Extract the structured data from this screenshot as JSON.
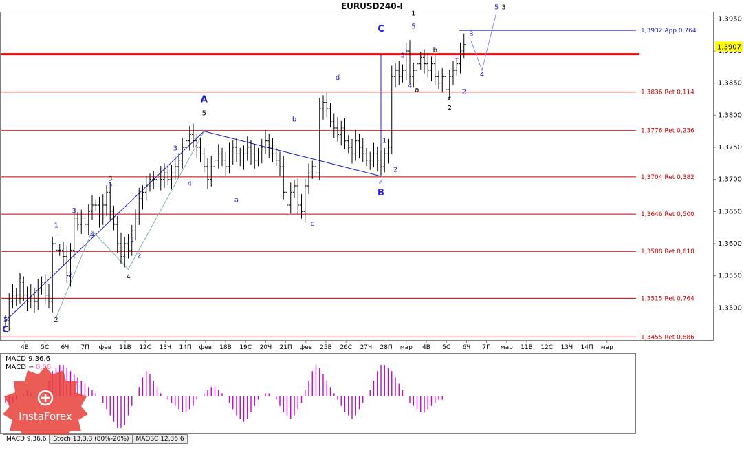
{
  "chart_data": {
    "type": "candlestick",
    "title": "EURUSD240-I",
    "current_price": "1,3907",
    "y_ticks": [
      "1,3950",
      "1,3900",
      "1,3850",
      "1,3800",
      "1,3750",
      "1,3700",
      "1,3650",
      "1,3600",
      "1,3550",
      "1,3500"
    ],
    "ylim": [
      1.345,
      1.396
    ],
    "x_ticks": [
      "4В",
      "5С",
      "6Ч",
      "7П",
      "фев",
      "11В",
      "12С",
      "13Ч",
      "14П",
      "фев",
      "18В",
      "19С",
      "20Ч",
      "21П",
      "фев",
      "25В",
      "26С",
      "27Ч",
      "28П",
      "мар",
      "4В",
      "5С",
      "6Ч",
      "7П",
      "мар",
      "11В",
      "12С",
      "13Ч",
      "14П",
      "мар"
    ],
    "price_series": [
      1.348,
      1.351,
      1.352,
      1.352,
      1.354,
      1.352,
      1.351,
      1.352,
      1.351,
      1.353,
      1.354,
      1.352,
      1.351,
      1.36,
      1.359,
      1.359,
      1.358,
      1.355,
      1.359,
      1.364,
      1.363,
      1.364,
      1.363,
      1.365,
      1.366,
      1.366,
      1.364,
      1.366,
      1.368,
      1.365,
      1.363,
      1.36,
      1.358,
      1.36,
      1.359,
      1.362,
      1.364,
      1.367,
      1.368,
      1.369,
      1.37,
      1.37,
      1.371,
      1.37,
      1.371,
      1.37,
      1.371,
      1.372,
      1.373,
      1.375,
      1.376,
      1.377,
      1.376,
      1.375,
      1.374,
      1.372,
      1.37,
      1.372,
      1.373,
      1.374,
      1.373,
      1.372,
      1.374,
      1.375,
      1.374,
      1.373,
      1.374,
      1.375,
      1.374,
      1.373,
      1.374,
      1.375,
      1.376,
      1.375,
      1.374,
      1.373,
      1.372,
      1.368,
      1.366,
      1.368,
      1.369,
      1.366,
      1.365,
      1.369,
      1.371,
      1.372,
      1.371,
      1.381,
      1.382,
      1.381,
      1.379,
      1.378,
      1.377,
      1.378,
      1.376,
      1.375,
      1.374,
      1.376,
      1.375,
      1.374,
      1.373,
      1.373,
      1.374,
      1.373,
      1.372,
      1.374,
      1.375,
      1.386,
      1.387,
      1.386,
      1.387,
      1.39,
      1.386,
      1.387,
      1.388,
      1.389,
      1.388,
      1.387,
      1.388,
      1.386,
      1.385,
      1.386,
      1.384,
      1.386,
      1.387,
      1.388,
      1.39,
      1.391
    ],
    "levels": [
      {
        "value": 1.3932,
        "label": "1,3932 App 0,764"
      },
      {
        "value": 1.3836,
        "label": "1,3836 Ret 0,114"
      },
      {
        "value": 1.3776,
        "label": "1,3776 Ret 0,236"
      },
      {
        "value": 1.3704,
        "label": "1,3704 Ret 0,382"
      },
      {
        "value": 1.3646,
        "label": "1,3646 Ret 0,500"
      },
      {
        "value": 1.3588,
        "label": "1,3588 Ret 0,618"
      },
      {
        "value": 1.3515,
        "label": "1,3515 Ret 0,764"
      },
      {
        "value": 1.3455,
        "label": "1,3455 Ret 0,886"
      }
    ],
    "resistance_level": 1.3895,
    "wave_labels": [
      {
        "text": "5",
        "x": 0,
        "y": 1.3478,
        "color": "#2222cc"
      },
      {
        "text": "C",
        "x": 0,
        "y": 1.3462,
        "color": "#2222cc"
      },
      {
        "text": "?",
        "x": 1,
        "y": 1.3462,
        "color": "#000000"
      },
      {
        "text": "1",
        "x": 4,
        "y": 1.3545,
        "color": "#000000"
      },
      {
        "text": "2",
        "x": 14,
        "y": 1.3478,
        "color": "#000000"
      },
      {
        "text": "1",
        "x": 14,
        "y": 1.3625,
        "color": "#2222cc"
      },
      {
        "text": "2",
        "x": 18,
        "y": 1.3548,
        "color": "#2222cc"
      },
      {
        "text": "3",
        "x": 19,
        "y": 1.3648,
        "color": "#2222cc"
      },
      {
        "text": "4",
        "x": 24,
        "y": 1.361,
        "color": "#2222cc"
      },
      {
        "text": "3",
        "x": 29,
        "y": 1.3698,
        "color": "#000000"
      },
      {
        "text": "5",
        "x": 29,
        "y": 1.3688,
        "color": "#2222cc"
      },
      {
        "text": "4",
        "x": 34,
        "y": 1.3545,
        "color": "#000000"
      },
      {
        "text": "1",
        "x": 35,
        "y": 1.3603,
        "color": "#2222cc"
      },
      {
        "text": "2",
        "x": 37,
        "y": 1.3578,
        "color": "#2222cc"
      },
      {
        "text": "3",
        "x": 47,
        "y": 1.3745,
        "color": "#2222cc"
      },
      {
        "text": "4",
        "x": 51,
        "y": 1.369,
        "color": "#2222cc"
      },
      {
        "text": "A",
        "x": 55,
        "y": 1.382,
        "color": "#2222cc"
      },
      {
        "text": "5",
        "x": 55,
        "y": 1.38,
        "color": "#000000"
      },
      {
        "text": "a",
        "x": 64,
        "y": 1.3665,
        "color": "#2222cc"
      },
      {
        "text": "b",
        "x": 80,
        "y": 1.379,
        "color": "#2222cc"
      },
      {
        "text": "c",
        "x": 85,
        "y": 1.3628,
        "color": "#2222cc"
      },
      {
        "text": "d",
        "x": 92,
        "y": 1.3855,
        "color": "#2222cc"
      },
      {
        "text": "e",
        "x": 104,
        "y": 1.3692,
        "color": "#2222cc"
      },
      {
        "text": "B",
        "x": 104,
        "y": 1.3675,
        "color": "#2222cc"
      },
      {
        "text": "C",
        "x": 104,
        "y": 1.393,
        "color": "#2222cc"
      },
      {
        "text": "1",
        "x": 105,
        "y": 1.3757,
        "color": "#2222cc"
      },
      {
        "text": "2",
        "x": 108,
        "y": 1.3712,
        "color": "#2222cc"
      },
      {
        "text": "3",
        "x": 110,
        "y": 1.389,
        "color": "#2222cc"
      },
      {
        "text": "4",
        "x": 112,
        "y": 1.3842,
        "color": "#2222cc"
      },
      {
        "text": "5",
        "x": 113,
        "y": 1.3935,
        "color": "#2222cc"
      },
      {
        "text": "1",
        "x": 113,
        "y": 1.3955,
        "color": "#000000"
      },
      {
        "text": "a",
        "x": 114,
        "y": 1.3836,
        "color": "#000000"
      },
      {
        "text": "b",
        "x": 119,
        "y": 1.3898,
        "color": "#000000"
      },
      {
        "text": "c",
        "x": 123,
        "y": 1.3823,
        "color": "#000000"
      },
      {
        "text": "2",
        "x": 123,
        "y": 1.3808,
        "color": "#000000"
      },
      {
        "text": "1",
        "x": 125,
        "y": 1.3888,
        "color": "#cc22cc"
      },
      {
        "text": "2",
        "x": 127,
        "y": 1.3833,
        "color": "#2222cc"
      },
      {
        "text": "3",
        "x": 129,
        "y": 1.3923,
        "color": "#2222cc"
      },
      {
        "text": "4",
        "x": 132,
        "y": 1.386,
        "color": "#2222cc"
      },
      {
        "text": "5",
        "x": 136,
        "y": 1.3965,
        "color": "#2222cc"
      },
      {
        "text": "3",
        "x": 138,
        "y": 1.3965,
        "color": "#000000"
      }
    ],
    "macd_label": "MACD 9,36,6",
    "macd_value_label": "MACD = ",
    "macd_value": "0,00",
    "macd_hist": [
      -0.2,
      -0.3,
      -0.2,
      -0.1,
      0.0,
      0.1,
      0.2,
      0.1,
      0.0,
      -0.1,
      0.0,
      0.2,
      0.5,
      0.8,
      0.9,
      1.0,
      1.0,
      0.9,
      0.8,
      0.7,
      0.6,
      0.5,
      0.4,
      0.3,
      0.2,
      0.1,
      0.0,
      -0.2,
      -0.4,
      -0.6,
      -0.8,
      -1.0,
      -1.0,
      -0.9,
      -0.6,
      -0.3,
      0.0,
      0.3,
      0.6,
      0.8,
      0.7,
      0.5,
      0.3,
      0.1,
      0.0,
      -0.1,
      -0.2,
      -0.3,
      -0.4,
      -0.5,
      -0.5,
      -0.4,
      -0.3,
      -0.1,
      0.0,
      0.1,
      0.2,
      0.3,
      0.3,
      0.2,
      0.1,
      0.0,
      -0.2,
      -0.4,
      -0.6,
      -0.7,
      -0.8,
      -0.7,
      -0.5,
      -0.3,
      -0.1,
      0.0,
      0.1,
      0.1,
      0.0,
      -0.1,
      -0.3,
      -0.5,
      -0.6,
      -0.7,
      -0.6,
      -0.4,
      -0.2,
      0.2,
      0.5,
      0.8,
      1.0,
      0.9,
      0.7,
      0.5,
      0.3,
      0.1,
      -0.1,
      -0.3,
      -0.5,
      -0.6,
      -0.7,
      -0.6,
      -0.4,
      -0.2,
      0.0,
      0.2,
      0.5,
      0.8,
      1.0,
      1.0,
      0.9,
      0.8,
      0.6,
      0.4,
      0.2,
      0.0,
      -0.2,
      -0.3,
      -0.4,
      -0.5,
      -0.5,
      -0.4,
      -0.3,
      -0.2,
      -0.1,
      -0.1
    ]
  },
  "watermark": {
    "text": "InstaForex"
  },
  "indicator_tabs": [
    "MACD 9,36,6",
    "Stoch 13,3,3 (80%-20%)",
    "MAOSC 12,36,6"
  ],
  "colors": {
    "level_line": "#cc0000",
    "resistance_line": "#ff0000",
    "fib_label": "#cc0000",
    "app_label": "#2222cc",
    "candle": "#000000",
    "macd_bar": "#cc00cc",
    "price_badge": "#ffff00"
  }
}
